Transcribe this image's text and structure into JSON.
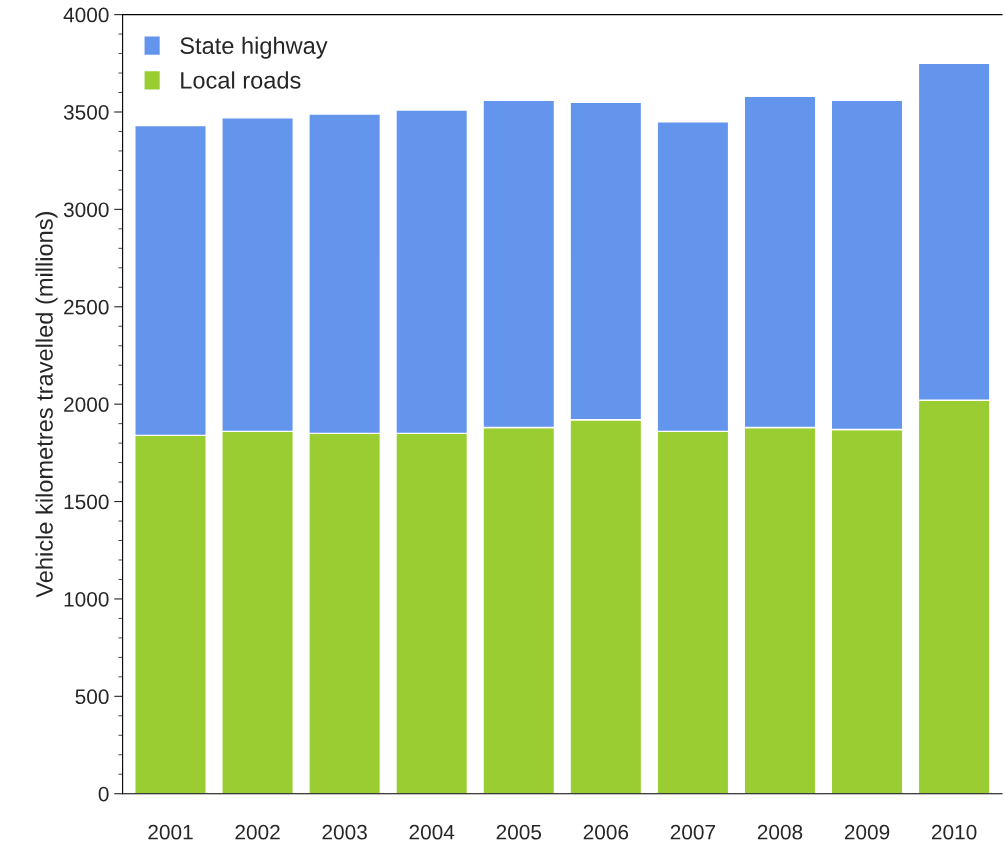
{
  "chart_data": {
    "type": "bar",
    "stacked": true,
    "ylabel": "Vehicle kilometres travelled (millions)",
    "categories": [
      "2001",
      "2002",
      "2003",
      "2004",
      "2005",
      "2006",
      "2007",
      "2008",
      "2009",
      "2010"
    ],
    "series": [
      {
        "name": "Local roads",
        "color": "#9acd32",
        "values": [
          1840,
          1860,
          1850,
          1850,
          1880,
          1920,
          1860,
          1880,
          1870,
          2020
        ]
      },
      {
        "name": "State highway",
        "color": "#6495ed",
        "values": [
          1590,
          1610,
          1640,
          1660,
          1680,
          1630,
          1590,
          1700,
          1690,
          1730
        ]
      }
    ],
    "ylim": [
      0,
      4000
    ],
    "yticks": [
      0,
      500,
      1000,
      1500,
      2000,
      2500,
      3000,
      3500,
      4000
    ],
    "grid": false,
    "legend": "top left"
  }
}
